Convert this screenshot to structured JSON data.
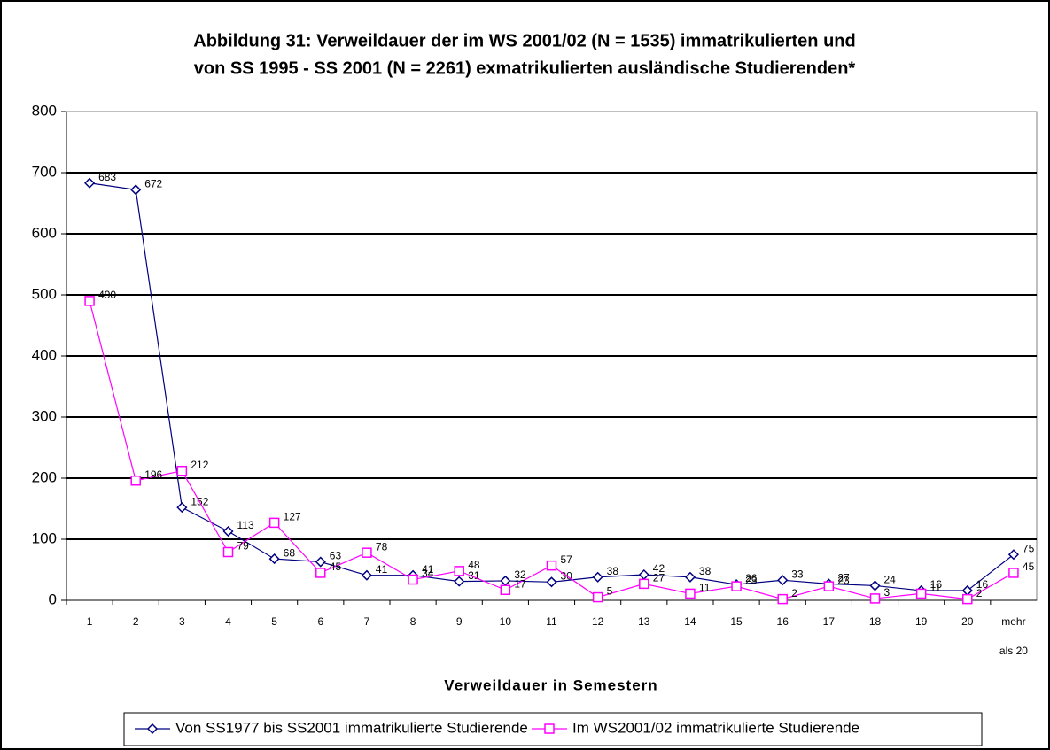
{
  "chart_data": {
    "type": "line",
    "title": [
      "Abbildung 31: Verweildauer der im WS 2001/02 (N = 1535) immatrikulierten und",
      "von SS 1995 - SS 2001 (N = 2261) exmatrikulierten ausländische Studierenden*"
    ],
    "x_label": "Verweildauer in Semestern",
    "categories": [
      "1",
      "2",
      "3",
      "4",
      "5",
      "6",
      "7",
      "8",
      "9",
      "10",
      "11",
      "12",
      "13",
      "14",
      "15",
      "16",
      "17",
      "18",
      "19",
      "20",
      "mehr als 20"
    ],
    "series": [
      {
        "name": "Von SS1977 bis SS2001 immatrikulierte Studierende",
        "color": "#000080",
        "marker": "diamond",
        "values": [
          683,
          672,
          152,
          113,
          68,
          63,
          41,
          41,
          31,
          32,
          30,
          38,
          42,
          38,
          26,
          33,
          27,
          24,
          16,
          16,
          75
        ]
      },
      {
        "name": "Im WS2001/02 immatrikulierte Studierende",
        "color": "#ff00ff",
        "marker": "square",
        "values": [
          490,
          196,
          212,
          79,
          127,
          45,
          78,
          34,
          48,
          17,
          57,
          5,
          27,
          11,
          23,
          2,
          23,
          3,
          11,
          2,
          45
        ]
      }
    ],
    "ylim": [
      0,
      800
    ],
    "yticks": [
      0,
      100,
      200,
      300,
      400,
      500,
      600,
      700,
      800
    ],
    "grid": true,
    "legend": "bottom"
  }
}
